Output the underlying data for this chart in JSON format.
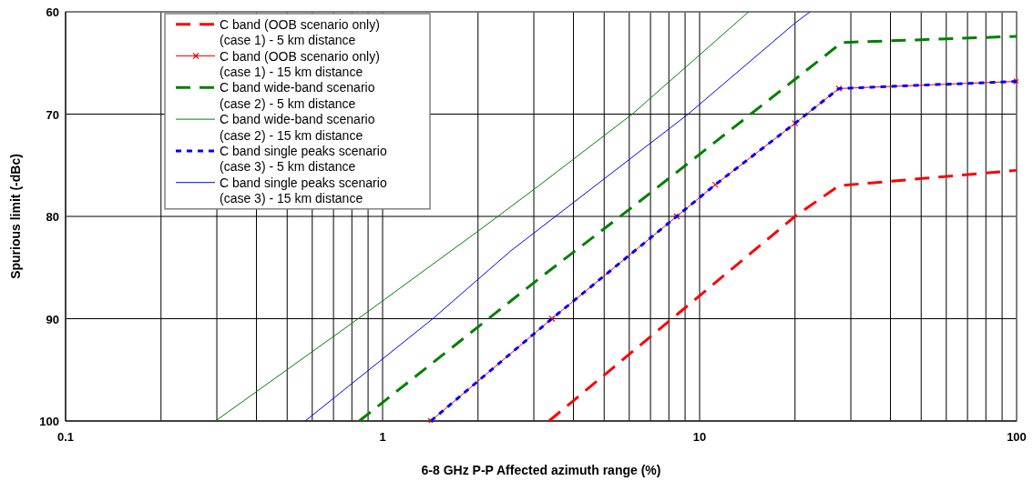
{
  "chart_data": {
    "type": "line",
    "xlabel": "6-8 GHz P-P Affected azimuth range (%)",
    "ylabel": "Spurious limit (-dBc)",
    "log": "x",
    "xlim": [
      0.1,
      100
    ],
    "ylim": [
      100,
      60
    ],
    "xticks": [
      0.1,
      {
        "value": 0.2,
        "label": null
      },
      {
        "value": 0.3,
        "label": null
      },
      {
        "value": 0.4,
        "label": null
      },
      {
        "value": 0.5,
        "label": null
      },
      {
        "value": 0.6,
        "label": null
      },
      {
        "value": 0.7,
        "label": null
      },
      {
        "value": 0.8,
        "label": null
      },
      {
        "value": 0.9,
        "label": null
      },
      1,
      {
        "value": 2,
        "label": null
      },
      {
        "value": 3,
        "label": null
      },
      {
        "value": 4,
        "label": null
      },
      {
        "value": 5,
        "label": null
      },
      {
        "value": 6,
        "label": null
      },
      {
        "value": 7,
        "label": null
      },
      {
        "value": 8,
        "label": null
      },
      {
        "value": 9,
        "label": null
      },
      10,
      {
        "value": 20,
        "label": null
      },
      {
        "value": 30,
        "label": null
      },
      {
        "value": 40,
        "label": null
      },
      {
        "value": 50,
        "label": null
      },
      {
        "value": 60,
        "label": null
      },
      {
        "value": 70,
        "label": null
      },
      {
        "value": 80,
        "label": null
      },
      {
        "value": 90,
        "label": null
      },
      100
    ],
    "yticks": [
      60,
      70,
      80,
      90,
      100
    ],
    "grid": true,
    "legend": "top left",
    "series": [
      {
        "name": "C band (OOB scenario only) (case 1) - 5 km distance",
        "color": "#ff0000",
        "line_style": "dashed",
        "x": [
          3.35,
          20,
          27.5,
          100
        ],
        "values": [
          100,
          80,
          77.0,
          75.5
        ]
      },
      {
        "name": "C band (OOB scenario only) (case 1) - 15 km distance",
        "color": "#ff0000",
        "line_style": "solid",
        "marker": "cross",
        "x": [
          1.42,
          3.42,
          8.47,
          11.2,
          20,
          27.5,
          100
        ],
        "values": [
          100,
          90,
          80,
          76.9,
          70.9,
          67.5,
          66.8
        ]
      },
      {
        "name": "C band wide-band scenario (case 2) - 5 km distance",
        "color": "#008000",
        "line_style": "dashed",
        "x": [
          0.844,
          3.11,
          6.13,
          20,
          28.1,
          100
        ],
        "values": [
          100,
          86.1,
          79.1,
          66.6,
          63.0,
          62.4
        ]
      },
      {
        "name": "C band wide-band scenario (case 2) - 15 km distance",
        "color": "#008000",
        "line_style": "solid",
        "x": [
          0.297,
          0.838,
          2.07,
          3.11,
          6.13,
          14.28
        ],
        "values": [
          100,
          90,
          81.1,
          77.0,
          70,
          60
        ]
      },
      {
        "name": "C band single peaks scenario (case 3) - 5 km distance",
        "color": "#0000ff",
        "line_style": "dotted",
        "x": [
          1.42,
          3.42,
          8.47,
          11.2,
          20,
          27.5,
          100
        ],
        "values": [
          100,
          90,
          80,
          76.9,
          70.9,
          67.5,
          66.8
        ]
      },
      {
        "name": "C band single peaks scenario (case 3) - 15 km distance",
        "color": "#0000ff",
        "line_style": "solid",
        "x": [
          0.57,
          1.44,
          2.53,
          9.2,
          20,
          22.3
        ],
        "values": [
          100,
          90,
          83.4,
          70,
          61.1,
          60
        ]
      }
    ]
  }
}
